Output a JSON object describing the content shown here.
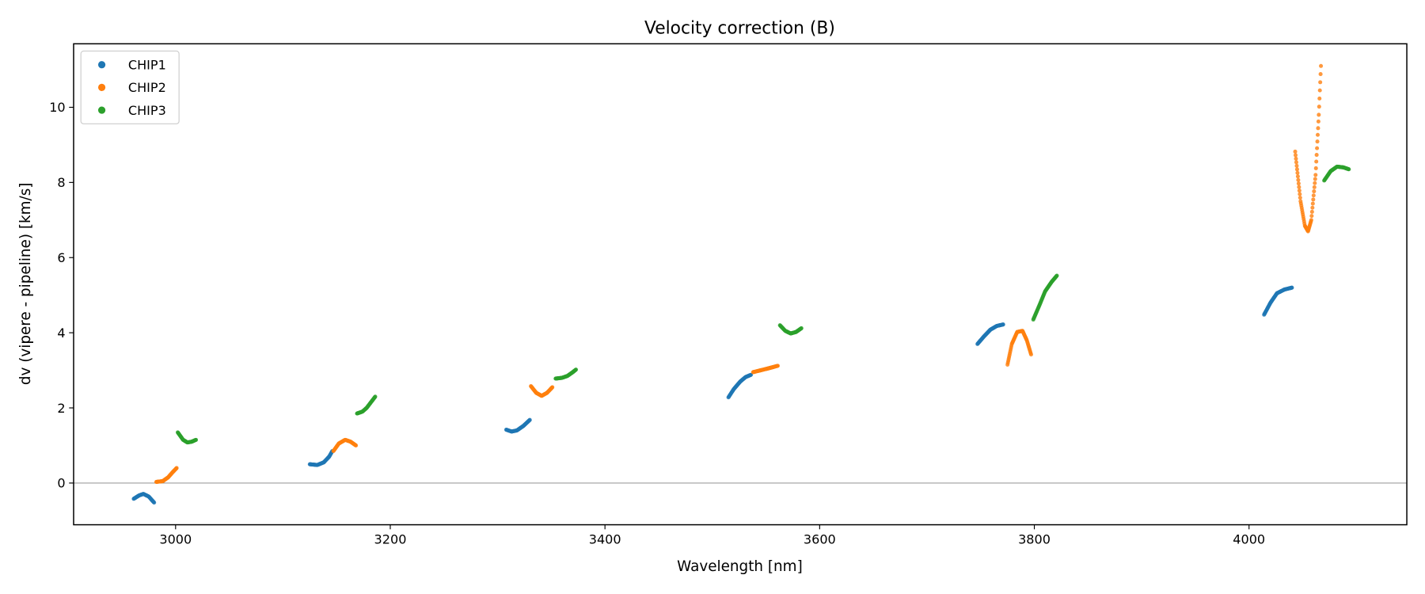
{
  "chart_data": {
    "type": "scatter",
    "title": "Velocity correction (B)",
    "xlabel": "Wavelength [nm]",
    "ylabel": "dv (vipere - pipeline) [km/s]",
    "xlim": [
      2905,
      4147
    ],
    "ylim": [
      -1.11,
      11.69
    ],
    "xticks": [
      3000,
      3200,
      3400,
      3600,
      3800,
      4000
    ],
    "yticks": [
      0,
      2,
      4,
      6,
      8,
      10
    ],
    "hline": 0,
    "legend_position": "top-left",
    "series": [
      {
        "name": "CHIP1",
        "color": "#1f77b4",
        "segments": [
          [
            [
              2961,
              -0.42
            ],
            [
              2966,
              -0.33
            ],
            [
              2970,
              -0.29
            ],
            [
              2975,
              -0.36
            ],
            [
              2980,
              -0.52
            ]
          ],
          [
            [
              3125,
              0.5
            ],
            [
              3132,
              0.48
            ],
            [
              3138,
              0.55
            ],
            [
              3143,
              0.7
            ],
            [
              3146,
              0.85
            ]
          ],
          [
            [
              3308,
              1.42
            ],
            [
              3313,
              1.37
            ],
            [
              3318,
              1.4
            ],
            [
              3324,
              1.52
            ],
            [
              3330,
              1.68
            ]
          ],
          [
            [
              3515,
              2.28
            ],
            [
              3520,
              2.5
            ],
            [
              3526,
              2.7
            ],
            [
              3531,
              2.82
            ],
            [
              3536,
              2.88
            ]
          ],
          [
            [
              3747,
              3.7
            ],
            [
              3753,
              3.9
            ],
            [
              3759,
              4.08
            ],
            [
              3765,
              4.18
            ],
            [
              3771,
              4.22
            ]
          ],
          [
            [
              4014,
              4.48
            ],
            [
              4020,
              4.8
            ],
            [
              4026,
              5.05
            ],
            [
              4033,
              5.15
            ],
            [
              4040,
              5.2
            ]
          ]
        ]
      },
      {
        "name": "CHIP2",
        "color": "#ff7f0e",
        "segments": [
          [
            [
              2982,
              0.03
            ],
            [
              2988,
              0.05
            ],
            [
              2993,
              0.15
            ],
            [
              2997,
              0.28
            ],
            [
              3001,
              0.4
            ]
          ],
          [
            [
              3147,
              0.85
            ],
            [
              3152,
              1.05
            ],
            [
              3158,
              1.15
            ],
            [
              3163,
              1.1
            ],
            [
              3168,
              1.0
            ]
          ],
          [
            [
              3331,
              2.58
            ],
            [
              3336,
              2.4
            ],
            [
              3341,
              2.32
            ],
            [
              3346,
              2.4
            ],
            [
              3351,
              2.55
            ]
          ],
          [
            [
              3538,
              2.95
            ],
            [
              3545,
              3.0
            ],
            [
              3552,
              3.05
            ],
            [
              3561,
              3.12
            ]
          ],
          [
            [
              3775,
              3.15
            ],
            [
              3779,
              3.7
            ],
            [
              3784,
              4.02
            ],
            [
              3789,
              4.05
            ],
            [
              3793,
              3.8
            ],
            [
              3797,
              3.42
            ]
          ],
          [
            [
              4043,
              8.82
            ],
            [
              4048,
              7.5
            ],
            [
              4052,
              6.85
            ],
            [
              4055,
              6.7
            ],
            [
              4058,
              7.0
            ],
            [
              4062,
              8.2
            ],
            [
              4065,
              9.8
            ],
            [
              4067,
              11.1
            ]
          ]
        ]
      },
      {
        "name": "CHIP3",
        "color": "#2ca02c",
        "segments": [
          [
            [
              3002,
              1.35
            ],
            [
              3007,
              1.15
            ],
            [
              3011,
              1.08
            ],
            [
              3015,
              1.1
            ],
            [
              3019,
              1.15
            ]
          ],
          [
            [
              3169,
              1.85
            ],
            [
              3174,
              1.9
            ],
            [
              3178,
              2.0
            ],
            [
              3182,
              2.15
            ],
            [
              3186,
              2.3
            ]
          ],
          [
            [
              3354,
              2.78
            ],
            [
              3360,
              2.8
            ],
            [
              3365,
              2.85
            ],
            [
              3370,
              2.95
            ],
            [
              3373,
              3.02
            ]
          ],
          [
            [
              3563,
              4.2
            ],
            [
              3568,
              4.05
            ],
            [
              3573,
              3.98
            ],
            [
              3578,
              4.02
            ],
            [
              3583,
              4.12
            ]
          ],
          [
            [
              3799,
              4.35
            ],
            [
              3805,
              4.75
            ],
            [
              3810,
              5.1
            ],
            [
              3816,
              5.35
            ],
            [
              3821,
              5.52
            ]
          ],
          [
            [
              4070,
              8.05
            ],
            [
              4076,
              8.3
            ],
            [
              4082,
              8.42
            ],
            [
              4088,
              8.4
            ],
            [
              4093,
              8.35
            ]
          ]
        ]
      }
    ]
  }
}
